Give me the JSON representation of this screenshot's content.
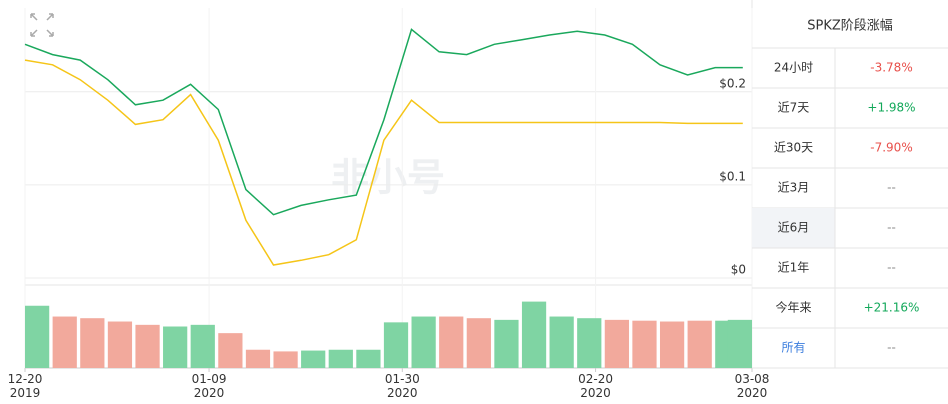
{
  "chart_data": {
    "type": "line",
    "watermark": "非小号",
    "x": [
      "2019-12-20",
      "2019-12-23",
      "2019-12-26",
      "2019-12-29",
      "2020-01-01",
      "2020-01-04",
      "2020-01-07",
      "2020-01-10",
      "2020-01-13",
      "2020-01-16",
      "2020-01-19",
      "2020-01-22",
      "2020-01-25",
      "2020-01-28",
      "2020-01-31",
      "2020-02-03",
      "2020-02-06",
      "2020-02-09",
      "2020-02-12",
      "2020-02-15",
      "2020-02-18",
      "2020-02-21",
      "2020-02-24",
      "2020-02-27",
      "2020-03-01",
      "2020-03-04",
      "2020-03-07"
    ],
    "xlim": [
      "2019-12-20",
      "2020-03-08"
    ],
    "xticks": [
      {
        "value": "2019-12-20",
        "label": "12-20\n2019"
      },
      {
        "value": "2020-01-09",
        "label": "01-09\n2020"
      },
      {
        "value": "2020-01-30",
        "label": "01-30\n2020"
      },
      {
        "value": "2020-02-20",
        "label": "02-20\n2020"
      },
      {
        "value": "2020-03-08",
        "label": "03-08\n2020"
      }
    ],
    "ylim": [
      0,
      0.29
    ],
    "yticks": [
      {
        "value": 0,
        "label": "$0"
      },
      {
        "value": 0.1,
        "label": "$0.1"
      },
      {
        "value": 0.2,
        "label": "$0.2"
      }
    ],
    "grid": true,
    "series": [
      {
        "color": "#1aa85c",
        "values": [
          0.251,
          0.24,
          0.234,
          0.213,
          0.186,
          0.191,
          0.208,
          0.181,
          0.095,
          0.068,
          0.078,
          0.084,
          0.089,
          0.17,
          0.267,
          0.243,
          0.24,
          0.251,
          0.256,
          0.261,
          0.265,
          0.261,
          0.251,
          0.229,
          0.218,
          0.226,
          0.226
        ]
      },
      {
        "color": "#f5c518",
        "values": [
          0.234,
          0.229,
          0.213,
          0.191,
          0.165,
          0.17,
          0.197,
          0.148,
          0.062,
          0.014,
          0.019,
          0.025,
          0.041,
          0.148,
          0.191,
          0.167,
          0.167,
          0.167,
          0.167,
          0.167,
          0.167,
          0.167,
          0.167,
          0.167,
          0.166,
          0.166,
          0.166
        ]
      }
    ],
    "volume": {
      "ylim": [
        0,
        100
      ],
      "up_color": "#7fd4a3",
      "down_color": "#f2a99c",
      "values": [
        75,
        62,
        60,
        56,
        52,
        50,
        52,
        42,
        22,
        20,
        21,
        22,
        22,
        55,
        62,
        62,
        60,
        58,
        80,
        62,
        60,
        58,
        57,
        56,
        57,
        57,
        58
      ]
    }
  },
  "table": {
    "title": "SPKZ阶段涨幅",
    "highlight_row": 4,
    "link_row": 7,
    "rows": [
      [
        "24小时",
        "-3.78%"
      ],
      [
        "近7天",
        "+1.98%"
      ],
      [
        "近30天",
        "-7.90%"
      ],
      [
        "近3月",
        "--"
      ],
      [
        "近6月",
        "--"
      ],
      [
        "近1年",
        "--"
      ],
      [
        "今年来",
        "+21.16%"
      ],
      [
        "所有",
        "--"
      ]
    ]
  }
}
